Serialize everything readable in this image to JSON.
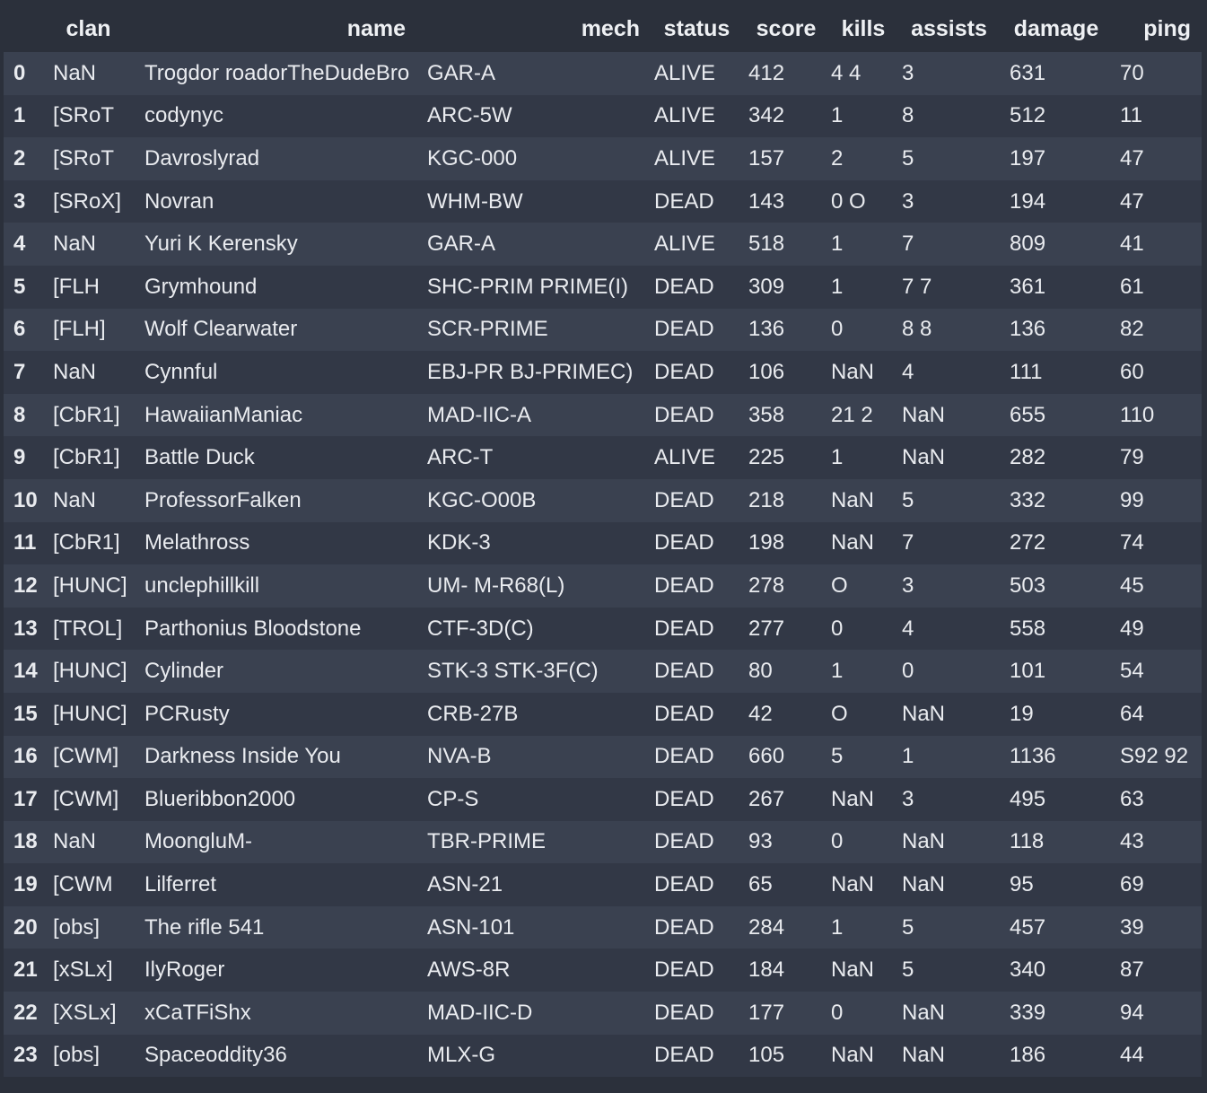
{
  "table": {
    "headers": {
      "index": "",
      "clan": "clan",
      "name": "name",
      "mech": "mech",
      "status": "status",
      "score": "score",
      "kills": "kills",
      "assists": "assists",
      "damage": "damage",
      "ping": "ping"
    },
    "rows": [
      {
        "index": "0",
        "clan": "NaN",
        "name": "Trogdor roadorTheDudeBro",
        "mech": "GAR-A",
        "status": "ALIVE",
        "score": "412",
        "kills": "4 4",
        "assists": "3",
        "damage": "631",
        "ping": "70"
      },
      {
        "index": "1",
        "clan": "[SRoT",
        "name": "codynyc",
        "mech": "ARC-5W",
        "status": "ALIVE",
        "score": "342",
        "kills": "1",
        "assists": "8",
        "damage": "512",
        "ping": "11"
      },
      {
        "index": "2",
        "clan": "[SRoT",
        "name": "Davroslyrad",
        "mech": "KGC-000",
        "status": "ALIVE",
        "score": "157",
        "kills": "2",
        "assists": "5",
        "damage": "197",
        "ping": "47"
      },
      {
        "index": "3",
        "clan": "[SRoX]",
        "name": "Novran",
        "mech": "WHM-BW",
        "status": "DEAD",
        "score": "143",
        "kills": "0 O",
        "assists": "3",
        "damage": "194",
        "ping": "47"
      },
      {
        "index": "4",
        "clan": "NaN",
        "name": "Yuri K Kerensky",
        "mech": "GAR-A",
        "status": "ALIVE",
        "score": "518",
        "kills": "1",
        "assists": "7",
        "damage": "809",
        "ping": "41"
      },
      {
        "index": "5",
        "clan": "[FLH",
        "name": "Grymhound",
        "mech": "SHC-PRIM PRIME(I)",
        "status": "DEAD",
        "score": "309",
        "kills": "1",
        "assists": "7 7",
        "damage": "361",
        "ping": "61"
      },
      {
        "index": "6",
        "clan": "[FLH]",
        "name": "Wolf Clearwater",
        "mech": "SCR-PRIME",
        "status": "DEAD",
        "score": "136",
        "kills": "0",
        "assists": "8 8",
        "damage": "136",
        "ping": "82"
      },
      {
        "index": "7",
        "clan": "NaN",
        "name": "Cynnful",
        "mech": "EBJ-PR BJ-PRIMEC)",
        "status": "DEAD",
        "score": "106",
        "kills": "NaN",
        "assists": "4",
        "damage": "111",
        "ping": "60"
      },
      {
        "index": "8",
        "clan": "[CbR1]",
        "name": "HawaiianManiac",
        "mech": "MAD-IIC-A",
        "status": "DEAD",
        "score": "358",
        "kills": "21 2",
        "assists": "NaN",
        "damage": "655",
        "ping": "110"
      },
      {
        "index": "9",
        "clan": "[CbR1]",
        "name": "Battle Duck",
        "mech": "ARC-T",
        "status": "ALIVE",
        "score": "225",
        "kills": "1",
        "assists": "NaN",
        "damage": "282",
        "ping": "79"
      },
      {
        "index": "10",
        "clan": "NaN",
        "name": "ProfessorFalken",
        "mech": "KGC-O00B",
        "status": "DEAD",
        "score": "218",
        "kills": "NaN",
        "assists": "5",
        "damage": "332",
        "ping": "99"
      },
      {
        "index": "11",
        "clan": "[CbR1]",
        "name": "Melathross",
        "mech": "KDK-3",
        "status": "DEAD",
        "score": "198",
        "kills": "NaN",
        "assists": "7",
        "damage": "272",
        "ping": "74"
      },
      {
        "index": "12",
        "clan": "[HUNC]",
        "name": "unclephillkill",
        "mech": "UM- M-R68(L)",
        "status": "DEAD",
        "score": "278",
        "kills": "O",
        "assists": "3",
        "damage": "503",
        "ping": "45"
      },
      {
        "index": "13",
        "clan": "[TROL]",
        "name": "Parthonius Bloodstone",
        "mech": "CTF-3D(C)",
        "status": "DEAD",
        "score": "277",
        "kills": "0",
        "assists": "4",
        "damage": "558",
        "ping": "49"
      },
      {
        "index": "14",
        "clan": "[HUNC]",
        "name": "Cylinder",
        "mech": "STK-3 STK-3F(C)",
        "status": "DEAD",
        "score": "80",
        "kills": "1",
        "assists": "0",
        "damage": "101",
        "ping": "54"
      },
      {
        "index": "15",
        "clan": "[HUNC]",
        "name": "PCRusty",
        "mech": "CRB-27B",
        "status": "DEAD",
        "score": "42",
        "kills": "O",
        "assists": "NaN",
        "damage": "19",
        "ping": "64"
      },
      {
        "index": "16",
        "clan": "[CWM]",
        "name": "Darkness Inside You",
        "mech": "NVA-B",
        "status": "DEAD",
        "score": "660",
        "kills": "5",
        "assists": "1",
        "damage": "1136",
        "ping": "S92 92"
      },
      {
        "index": "17",
        "clan": "[CWM]",
        "name": "Blueribbon2000",
        "mech": "CP-S",
        "status": "DEAD",
        "score": "267",
        "kills": "NaN",
        "assists": "3",
        "damage": "495",
        "ping": "63"
      },
      {
        "index": "18",
        "clan": "NaN",
        "name": "MoongluM-",
        "mech": "TBR-PRIME",
        "status": "DEAD",
        "score": "93",
        "kills": "0",
        "assists": "NaN",
        "damage": "118",
        "ping": "43"
      },
      {
        "index": "19",
        "clan": "[CWM",
        "name": "Lilferret",
        "mech": "ASN-21",
        "status": "DEAD",
        "score": "65",
        "kills": "NaN",
        "assists": "NaN",
        "damage": "95",
        "ping": "69"
      },
      {
        "index": "20",
        "clan": "[obs]",
        "name": "The rifle 541",
        "mech": "ASN-101",
        "status": "DEAD",
        "score": "284",
        "kills": "1",
        "assists": "5",
        "damage": "457",
        "ping": "39"
      },
      {
        "index": "21",
        "clan": "[xSLx]",
        "name": "IlyRoger",
        "mech": "AWS-8R",
        "status": "DEAD",
        "score": "184",
        "kills": "NaN",
        "assists": "5",
        "damage": "340",
        "ping": "87"
      },
      {
        "index": "22",
        "clan": "[XSLx]",
        "name": "xCaTFiShx",
        "mech": "MAD-IIC-D",
        "status": "DEAD",
        "score": "177",
        "kills": "0",
        "assists": "NaN",
        "damage": "339",
        "ping": "94"
      },
      {
        "index": "23",
        "clan": "[obs]",
        "name": "Spaceoddity36",
        "mech": "MLX-G",
        "status": "DEAD",
        "score": "105",
        "kills": "NaN",
        "assists": "NaN",
        "damage": "186",
        "ping": "44"
      }
    ]
  },
  "colors": {
    "background": "#2b303b",
    "row_odd": "#3a4150",
    "row_even": "#323846",
    "text": "#e9ebef"
  }
}
